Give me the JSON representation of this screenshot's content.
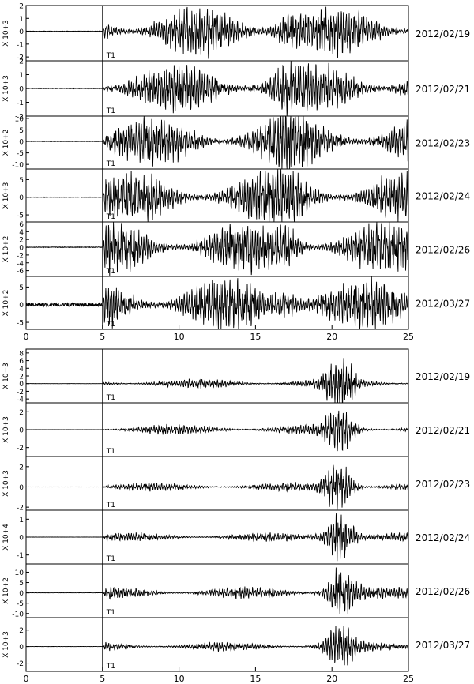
{
  "chart_data": [
    {
      "type": "line",
      "title": "",
      "xlabel": "",
      "ylabel": "",
      "xlim": [
        0,
        25
      ],
      "x_ticks": [
        "0",
        "5",
        "10",
        "15",
        "20",
        "25"
      ],
      "marker_label": "T1",
      "marker_x": 5.0,
      "panels": [
        {
          "date": "2012/02/19",
          "scale": "X 10+3",
          "ylim": [
            -2.3,
            2.0
          ],
          "y_ticks": [
            "2",
            "1",
            "0",
            "-1",
            "-2"
          ],
          "y_tick_values": [
            2,
            1,
            0,
            -1,
            -2
          ],
          "amp": 1.6,
          "pre_noise": 0.02,
          "burst_x": 17.0,
          "burst_gain": 0.4
        },
        {
          "date": "2012/02/21",
          "scale": "X 10+3",
          "ylim": [
            -2.0,
            2.0
          ],
          "y_ticks": [
            "2",
            "1",
            "0",
            "-1",
            "-2"
          ],
          "y_tick_values": [
            2,
            1,
            0,
            -1,
            -2
          ],
          "amp": 1.5,
          "pre_noise": 0.02,
          "burst_x": 17.0,
          "burst_gain": 0.4
        },
        {
          "date": "2012/02/23",
          "scale": "X 10+2",
          "ylim": [
            -12,
            11
          ],
          "y_ticks": [
            "10",
            "5",
            "0",
            "-5",
            "-10"
          ],
          "y_tick_values": [
            10,
            5,
            0,
            -5,
            -10
          ],
          "amp": 9,
          "pre_noise": 0.1,
          "burst_x": 17.0,
          "burst_gain": 0.4
        },
        {
          "date": "2012/02/24",
          "scale": "X 10+3",
          "ylim": [
            -7,
            8
          ],
          "y_ticks": [
            "5",
            "0",
            "-5"
          ],
          "y_tick_values": [
            5,
            0,
            -5
          ],
          "amp": 6,
          "pre_noise": 0.06,
          "burst_x": 17.0,
          "burst_gain": 0.4
        },
        {
          "date": "2012/02/26",
          "scale": "X 10+2",
          "ylim": [
            -7.5,
            6.5
          ],
          "y_ticks": [
            "6",
            "4",
            "2",
            "0",
            "-2",
            "-4",
            "-6"
          ],
          "y_tick_values": [
            6,
            4,
            2,
            0,
            -2,
            -4,
            -6
          ],
          "amp": 5.5,
          "pre_noise": 0.08,
          "burst_x": 17.0,
          "burst_gain": 0.4
        },
        {
          "date": "2012/03/27",
          "scale": "X 10+2",
          "ylim": [
            -7,
            8
          ],
          "y_ticks": [
            "5",
            "0",
            "-5"
          ],
          "y_tick_values": [
            5,
            0,
            -5
          ],
          "amp": 6.5,
          "pre_noise": 0.5,
          "burst_x": 17.0,
          "burst_gain": 0.4
        }
      ]
    },
    {
      "type": "line",
      "title": "",
      "xlabel": "",
      "ylabel": "",
      "xlim": [
        0,
        25
      ],
      "x_ticks": [
        "0",
        "5",
        "10",
        "15",
        "20",
        "25"
      ],
      "marker_label": "T1",
      "marker_x": 5.0,
      "panels": [
        {
          "date": "2012/02/19",
          "scale": "X 10+3",
          "ylim": [
            -5,
            9
          ],
          "y_ticks": [
            "8",
            "6",
            "4",
            "2",
            "0",
            "-2",
            "-4"
          ],
          "y_tick_values": [
            8,
            6,
            4,
            2,
            0,
            -2,
            -4
          ],
          "amp": 1.0,
          "pre_noise": 0.02,
          "burst_x": 20.5,
          "burst_gain": 6.0
        },
        {
          "date": "2012/02/21",
          "scale": "X 10+3",
          "ylim": [
            -3,
            3
          ],
          "y_ticks": [
            "2",
            "0",
            "-2"
          ],
          "y_tick_values": [
            2,
            0,
            -2
          ],
          "amp": 0.5,
          "pre_noise": 0.01,
          "burst_x": 20.5,
          "burst_gain": 4.0
        },
        {
          "date": "2012/02/23",
          "scale": "X 10+3",
          "ylim": [
            -2.3,
            3
          ],
          "y_ticks": [
            "2",
            "0",
            "-2"
          ],
          "y_tick_values": [
            2,
            0,
            -2
          ],
          "amp": 0.35,
          "pre_noise": 0.01,
          "burst_x": 20.4,
          "burst_gain": 6.0
        },
        {
          "date": "2012/02/24",
          "scale": "X 10+4",
          "ylim": [
            -1.5,
            1.5
          ],
          "y_ticks": [
            "1",
            "0",
            "-1"
          ],
          "y_tick_values": [
            1,
            0,
            -1
          ],
          "amp": 0.2,
          "pre_noise": 0.005,
          "burst_x": 20.5,
          "burst_gain": 6.0
        },
        {
          "date": "2012/02/26",
          "scale": "X 10+2",
          "ylim": [
            -12,
            14
          ],
          "y_ticks": [
            "10",
            "5",
            "0",
            "-5",
            "-10"
          ],
          "y_tick_values": [
            10,
            5,
            0,
            -5,
            -10
          ],
          "amp": 2.5,
          "pre_noise": 0.05,
          "burst_x": 20.6,
          "burst_gain": 4.0
        },
        {
          "date": "2012/03/27",
          "scale": "X 10+3",
          "ylim": [
            -3,
            3.5
          ],
          "y_ticks": [
            "2",
            "0",
            "-2"
          ],
          "y_tick_values": [
            2,
            0,
            -2
          ],
          "amp": 0.45,
          "pre_noise": 0.01,
          "burst_x": 20.5,
          "burst_gain": 5.0
        }
      ]
    }
  ]
}
